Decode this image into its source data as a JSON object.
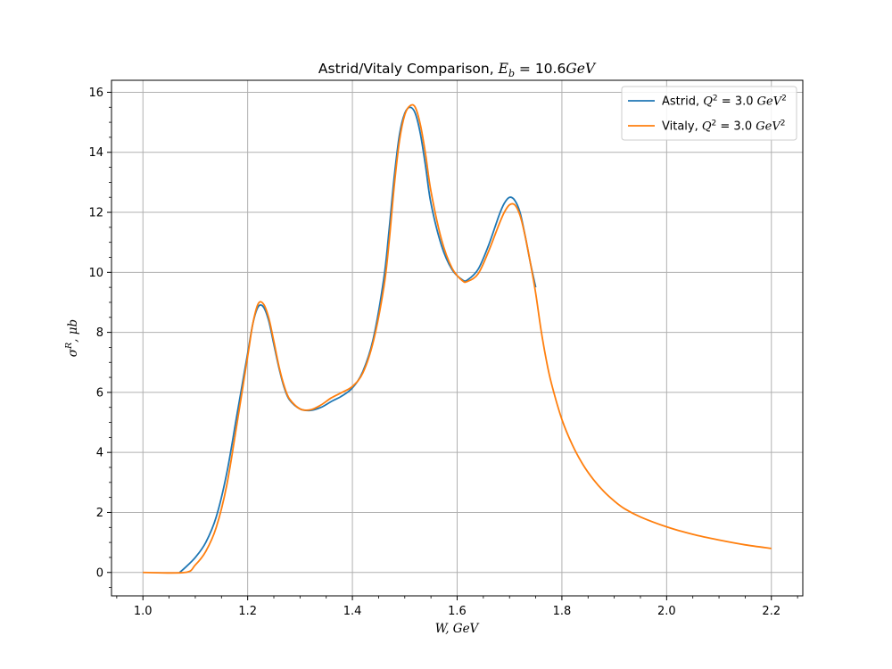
{
  "chart_data": {
    "type": "line",
    "title": "Astrid/Vitaly Comparison, E_b = 10.6GeV",
    "title_parts": {
      "text": "Astrid/Vitaly Comparison, ",
      "math_symbol": "E",
      "math_subscript": "b",
      "math_rest": " = 10.6",
      "math_unit": "GeV"
    },
    "xlabel": "W, GeV",
    "ylabel": "σ^R, μb",
    "xlim": [
      0.94,
      2.26
    ],
    "ylim": [
      -0.78,
      16.4
    ],
    "xticks": [
      1.0,
      1.2,
      1.4,
      1.6,
      1.8,
      2.0,
      2.2
    ],
    "xtick_labels": [
      "1.0",
      "1.2",
      "1.4",
      "1.6",
      "1.8",
      "2.0",
      "2.2"
    ],
    "yticks": [
      0,
      2,
      4,
      6,
      8,
      10,
      12,
      14,
      16
    ],
    "ytick_labels": [
      "0",
      "2",
      "4",
      "6",
      "8",
      "10",
      "12",
      "14",
      "16"
    ],
    "grid": true,
    "legend_position": "top-right",
    "legend": [
      {
        "prefix": "Astrid, ",
        "color": "#1f77b4"
      },
      {
        "prefix": "Vitaly, ",
        "color": "#ff7f0e"
      }
    ],
    "legend_math": {
      "q": "Q",
      "q_exp": "2",
      "eq": " = 3.0 ",
      "unit": "GeV",
      "unit_exp": "2"
    },
    "series": [
      {
        "name": "Astrid, Q^2 = 3.0 GeV^2",
        "color": "#1f77b4",
        "points": [
          [
            1.07,
            0.0
          ],
          [
            1.08,
            0.15
          ],
          [
            1.1,
            0.5
          ],
          [
            1.12,
            1.0
          ],
          [
            1.14,
            1.85
          ],
          [
            1.16,
            3.3
          ],
          [
            1.18,
            5.3
          ],
          [
            1.2,
            7.3
          ],
          [
            1.21,
            8.3
          ],
          [
            1.22,
            8.85
          ],
          [
            1.23,
            8.85
          ],
          [
            1.24,
            8.4
          ],
          [
            1.25,
            7.6
          ],
          [
            1.26,
            6.8
          ],
          [
            1.27,
            6.15
          ],
          [
            1.28,
            5.75
          ],
          [
            1.3,
            5.45
          ],
          [
            1.32,
            5.4
          ],
          [
            1.34,
            5.5
          ],
          [
            1.36,
            5.7
          ],
          [
            1.38,
            5.88
          ],
          [
            1.4,
            6.15
          ],
          [
            1.42,
            6.7
          ],
          [
            1.44,
            7.8
          ],
          [
            1.46,
            9.8
          ],
          [
            1.47,
            11.4
          ],
          [
            1.48,
            13.2
          ],
          [
            1.49,
            14.6
          ],
          [
            1.5,
            15.3
          ],
          [
            1.51,
            15.5
          ],
          [
            1.52,
            15.3
          ],
          [
            1.53,
            14.6
          ],
          [
            1.54,
            13.5
          ],
          [
            1.55,
            12.3
          ],
          [
            1.57,
            10.9
          ],
          [
            1.59,
            10.1
          ],
          [
            1.61,
            9.75
          ],
          [
            1.62,
            9.75
          ],
          [
            1.64,
            10.1
          ],
          [
            1.66,
            10.9
          ],
          [
            1.68,
            11.9
          ],
          [
            1.69,
            12.3
          ],
          [
            1.7,
            12.5
          ],
          [
            1.71,
            12.4
          ],
          [
            1.72,
            12.0
          ],
          [
            1.73,
            11.2
          ],
          [
            1.74,
            10.3
          ],
          [
            1.75,
            9.5
          ]
        ]
      },
      {
        "name": "Vitaly, Q^2 = 3.0 GeV^2",
        "color": "#ff7f0e",
        "points": [
          [
            1.0,
            0.0
          ],
          [
            1.08,
            0.0
          ],
          [
            1.1,
            0.25
          ],
          [
            1.12,
            0.7
          ],
          [
            1.14,
            1.5
          ],
          [
            1.16,
            2.9
          ],
          [
            1.18,
            5.0
          ],
          [
            1.2,
            7.2
          ],
          [
            1.21,
            8.3
          ],
          [
            1.22,
            8.95
          ],
          [
            1.23,
            8.95
          ],
          [
            1.24,
            8.5
          ],
          [
            1.25,
            7.7
          ],
          [
            1.26,
            6.85
          ],
          [
            1.27,
            6.2
          ],
          [
            1.28,
            5.78
          ],
          [
            1.3,
            5.45
          ],
          [
            1.32,
            5.42
          ],
          [
            1.34,
            5.58
          ],
          [
            1.36,
            5.82
          ],
          [
            1.38,
            6.0
          ],
          [
            1.4,
            6.2
          ],
          [
            1.42,
            6.65
          ],
          [
            1.44,
            7.7
          ],
          [
            1.46,
            9.5
          ],
          [
            1.47,
            11.0
          ],
          [
            1.48,
            12.9
          ],
          [
            1.49,
            14.4
          ],
          [
            1.5,
            15.25
          ],
          [
            1.51,
            15.55
          ],
          [
            1.52,
            15.5
          ],
          [
            1.53,
            14.9
          ],
          [
            1.54,
            13.9
          ],
          [
            1.55,
            12.7
          ],
          [
            1.57,
            11.1
          ],
          [
            1.59,
            10.15
          ],
          [
            1.61,
            9.72
          ],
          [
            1.62,
            9.7
          ],
          [
            1.64,
            9.95
          ],
          [
            1.66,
            10.7
          ],
          [
            1.68,
            11.6
          ],
          [
            1.69,
            12.0
          ],
          [
            1.7,
            12.25
          ],
          [
            1.71,
            12.25
          ],
          [
            1.72,
            11.9
          ],
          [
            1.73,
            11.2
          ],
          [
            1.74,
            10.3
          ],
          [
            1.75,
            9.3
          ],
          [
            1.76,
            8.1
          ],
          [
            1.77,
            7.1
          ],
          [
            1.78,
            6.3
          ],
          [
            1.8,
            5.1
          ],
          [
            1.82,
            4.25
          ],
          [
            1.84,
            3.6
          ],
          [
            1.86,
            3.1
          ],
          [
            1.88,
            2.7
          ],
          [
            1.9,
            2.38
          ],
          [
            1.92,
            2.12
          ],
          [
            1.95,
            1.85
          ],
          [
            2.0,
            1.52
          ],
          [
            2.05,
            1.27
          ],
          [
            2.1,
            1.08
          ],
          [
            2.15,
            0.92
          ],
          [
            2.2,
            0.8
          ]
        ]
      }
    ]
  }
}
